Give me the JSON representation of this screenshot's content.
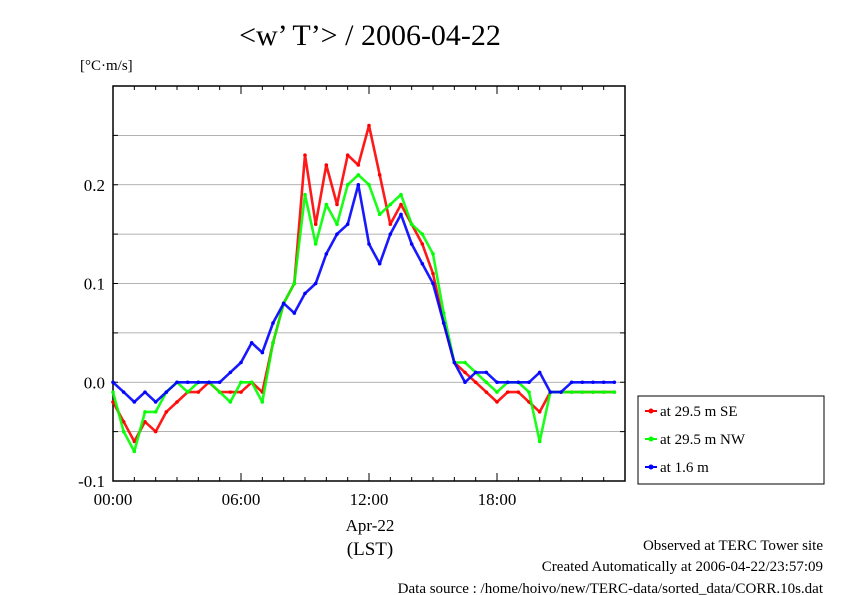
{
  "chart_data": {
    "type": "line",
    "title": "<w’ T’> / 2006-04-22",
    "ylabel": "[°C·m/s]",
    "xlabel": "Apr-22",
    "xlabel_unit": "(LST)",
    "xlim": [
      0,
      24
    ],
    "ylim": [
      -0.1,
      0.3
    ],
    "x_tick_labels": [
      "00:00",
      "06:00",
      "12:00",
      "18:00"
    ],
    "x_tick_values": [
      0,
      6,
      12,
      18
    ],
    "y_tick_labels": [
      "-0.1",
      "0.0",
      "0.1",
      "0.2"
    ],
    "y_tick_values": [
      -0.1,
      0.0,
      0.1,
      0.2
    ],
    "grid": true,
    "legend_position": "right",
    "x": [
      0,
      0.5,
      1,
      1.5,
      2,
      2.5,
      3,
      3.5,
      4,
      4.5,
      5,
      5.5,
      6,
      6.5,
      7,
      7.5,
      8,
      8.5,
      9,
      9.5,
      10,
      10.5,
      11,
      11.5,
      12,
      12.5,
      13,
      13.5,
      14,
      14.5,
      15,
      15.5,
      16,
      16.5,
      17,
      17.5,
      18,
      18.5,
      19,
      19.5,
      20,
      20.5,
      21,
      21.5,
      22,
      22.5,
      23,
      23.5
    ],
    "series": [
      {
        "name": "at 29.5 m SE",
        "color": "#ff0000",
        "values": [
          -0.02,
          -0.04,
          -0.06,
          -0.04,
          -0.05,
          -0.03,
          -0.02,
          -0.01,
          -0.01,
          0.0,
          -0.01,
          -0.01,
          -0.01,
          0.0,
          -0.01,
          0.04,
          0.08,
          0.1,
          0.23,
          0.16,
          0.22,
          0.18,
          0.23,
          0.22,
          0.26,
          0.21,
          0.16,
          0.18,
          0.16,
          0.14,
          0.11,
          0.06,
          0.02,
          0.01,
          0.0,
          -0.01,
          -0.02,
          -0.01,
          -0.01,
          -0.02,
          -0.03,
          -0.01,
          -0.01,
          -0.01,
          -0.01,
          -0.01,
          -0.01,
          -0.01
        ]
      },
      {
        "name": "at 29.5 m NW",
        "color": "#00ff00",
        "values": [
          -0.01,
          -0.05,
          -0.07,
          -0.03,
          -0.03,
          -0.01,
          0.0,
          -0.01,
          0.0,
          0.0,
          -0.01,
          -0.02,
          0.0,
          0.0,
          -0.02,
          0.04,
          0.08,
          0.1,
          0.19,
          0.14,
          0.18,
          0.16,
          0.2,
          0.21,
          0.2,
          0.17,
          0.18,
          0.19,
          0.16,
          0.15,
          0.13,
          0.07,
          0.02,
          0.02,
          0.01,
          0.0,
          -0.01,
          0.0,
          0.0,
          -0.01,
          -0.06,
          -0.01,
          -0.01,
          -0.01,
          -0.01,
          -0.01,
          -0.01,
          -0.01
        ]
      },
      {
        "name": "at 1.6 m",
        "color": "#0000ff",
        "values": [
          0.0,
          -0.01,
          -0.02,
          -0.01,
          -0.02,
          -0.01,
          0.0,
          0.0,
          0.0,
          0.0,
          0.0,
          0.01,
          0.02,
          0.04,
          0.03,
          0.06,
          0.08,
          0.07,
          0.09,
          0.1,
          0.13,
          0.15,
          0.16,
          0.2,
          0.14,
          0.12,
          0.15,
          0.17,
          0.14,
          0.12,
          0.1,
          0.06,
          0.02,
          0.0,
          0.01,
          0.01,
          0.0,
          0.0,
          0.0,
          0.0,
          0.01,
          -0.01,
          -0.01,
          0.0,
          0.0,
          0.0,
          0.0,
          0.0
        ]
      }
    ]
  },
  "footer": {
    "line1": "Observed at TERC Tower site",
    "line2": "Created Automatically at 2006-04-22/23:57:09",
    "line3": "Data source : /home/hoivo/new/TERC-data/sorted_data/CORR.10s.dat"
  }
}
